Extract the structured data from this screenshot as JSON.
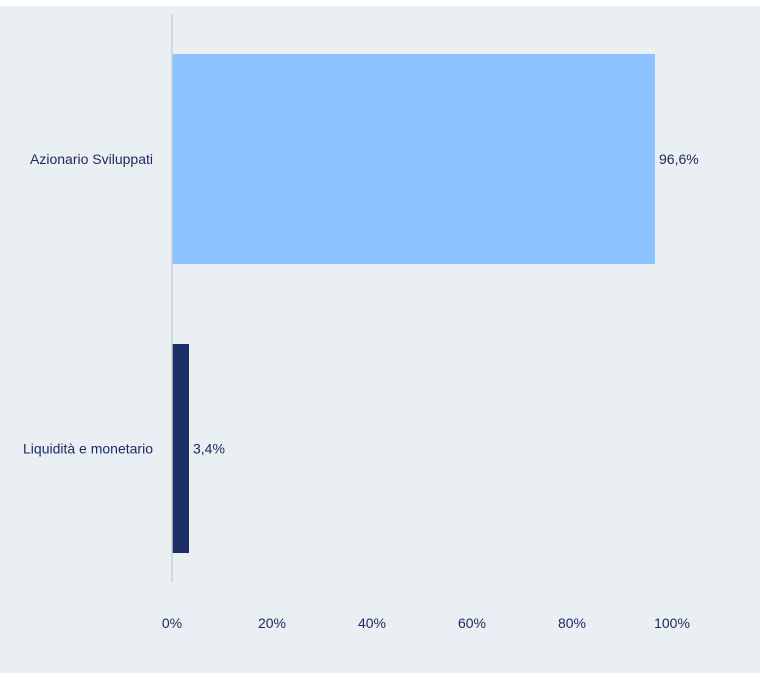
{
  "chart_data": {
    "type": "bar",
    "orientation": "horizontal",
    "categories": [
      "Azionario Sviluppati",
      "Liquidità e monetario"
    ],
    "values": [
      96.6,
      3.4
    ],
    "value_labels": [
      "96,6%",
      "3,4%"
    ],
    "bar_colors": [
      "#8bc2ff",
      "#1c2f66"
    ],
    "xlim": [
      0,
      100
    ],
    "xticks": [
      0,
      20,
      40,
      60,
      80,
      100
    ],
    "xtick_labels": [
      "0%",
      "20%",
      "40%",
      "60%",
      "80%",
      "100%"
    ],
    "title": "",
    "xlabel": "",
    "ylabel": "",
    "grid": false,
    "legend": "none"
  },
  "colors": {
    "background": "#e9eff2",
    "axis_line": "#cbcfd3",
    "text": "#1d2b63"
  }
}
